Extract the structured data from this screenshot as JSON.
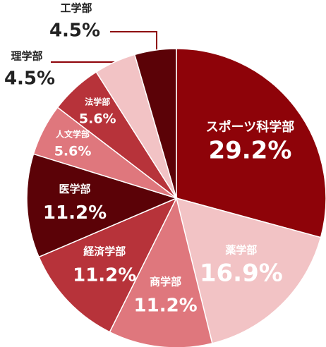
{
  "chart_data": {
    "type": "pie",
    "categories": [
      "スポーツ科学部",
      "薬学部",
      "商学部",
      "経済学部",
      "医学部",
      "人文学部",
      "法学部",
      "理学部",
      "工学部"
    ],
    "values": [
      29.2,
      16.9,
      11.2,
      11.2,
      11.2,
      5.6,
      5.6,
      4.5,
      4.5
    ],
    "value_labels": [
      "29.2%",
      "16.9%",
      "11.2%",
      "11.2%",
      "11.2%",
      "5.6%",
      "5.6%",
      "4.5%",
      "4.5%"
    ],
    "colors": [
      "#8e0309",
      "#f2c3c5",
      "#df777d",
      "#b7333a",
      "#5b0207",
      "#df777d",
      "#b7333a",
      "#f2c3c5",
      "#5b0207"
    ]
  }
}
